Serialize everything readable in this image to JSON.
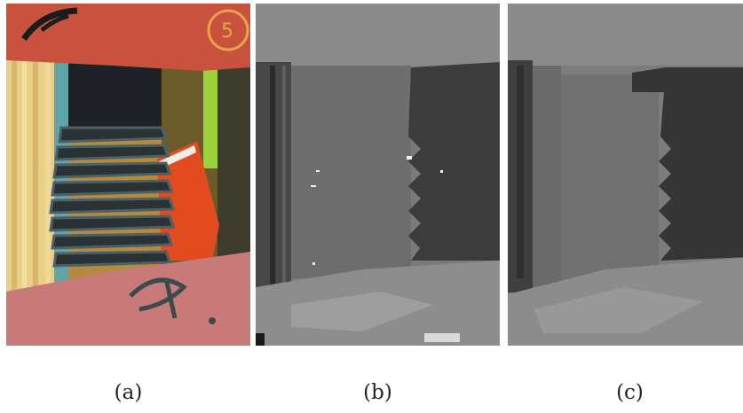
{
  "figure": {
    "panels": [
      {
        "id": "a",
        "caption": "(a)",
        "kind": "photograph"
      },
      {
        "id": "b",
        "caption": "(b)",
        "kind": "noisy-disparity-map"
      },
      {
        "id": "c",
        "caption": "(c)",
        "kind": "refined-disparity-map"
      }
    ]
  }
}
